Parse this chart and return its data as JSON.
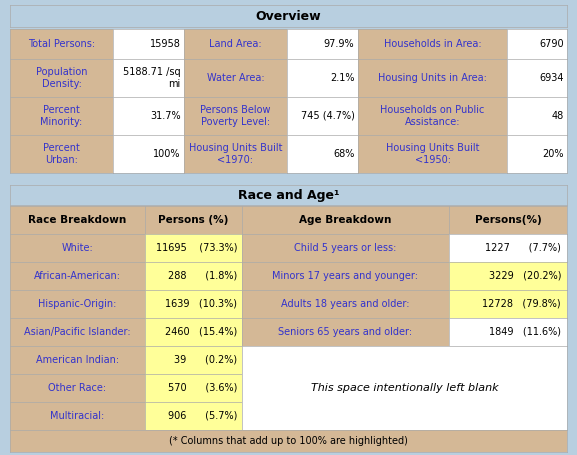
{
  "background_color": "#b8cfe0",
  "overview_title": "Overview",
  "race_age_title": "Race and Age¹",
  "overview_rows": [
    [
      "Total Persons:",
      "15958",
      "Land Area:",
      "97.9%",
      "Households in Area:",
      "6790"
    ],
    [
      "Population\nDensity:",
      "5188.71 /sq\nmi",
      "Water Area:",
      "2.1%",
      "Housing Units in Area:",
      "6934"
    ],
    [
      "Percent\nMinority:",
      "31.7%",
      "Persons Below\nPoverty Level:",
      "745 (4.7%)",
      "Households on Public\nAssistance:",
      "48"
    ],
    [
      "Percent\nUrban:",
      "100%",
      "Housing Units Built\n<1970:",
      "68%",
      "Housing Units Built\n<1950:",
      "20%"
    ]
  ],
  "race_headers": [
    "Race Breakdown",
    "Persons (%)",
    "Age Breakdown",
    "Persons(%)"
  ],
  "race_rows": [
    [
      "White:",
      "11695    (73.3%)",
      "Child 5 years or less:",
      "1227      (7.7%)",
      false,
      false
    ],
    [
      "African-American:",
      "288      (1.8%)",
      "Minors 17 years and younger:",
      "3229   (20.2%)",
      false,
      true
    ],
    [
      "Hispanic-Origin:",
      "1639   (10.3%)",
      "Adults 18 years and older:",
      "12728   (79.8%)",
      false,
      true
    ],
    [
      "Asian/Pacific Islander:",
      "2460   (15.4%)",
      "Seniors 65 years and older:",
      "1849   (11.6%)",
      false,
      false
    ],
    [
      "American Indian:",
      "39      (0.2%)",
      "",
      "",
      false,
      false
    ],
    [
      "Other Race:",
      "570      (3.6%)",
      "",
      "",
      false,
      false
    ],
    [
      "Multiracial:",
      "906      (5.7%)",
      "",
      "",
      false,
      false
    ]
  ],
  "highlight_yellow": "#ffff99",
  "cell_bg_tan": "#d4b896",
  "cell_bg_white": "#ffffff",
  "footnote": "(* Columns that add up to 100% are highlighted)",
  "blank_text": "This space intentionally left blank",
  "link_color": "#3333cc",
  "border_color": "#aaaaaa",
  "title_fontsize": 9,
  "cell_fontsize": 7,
  "header_fontsize": 7.5
}
